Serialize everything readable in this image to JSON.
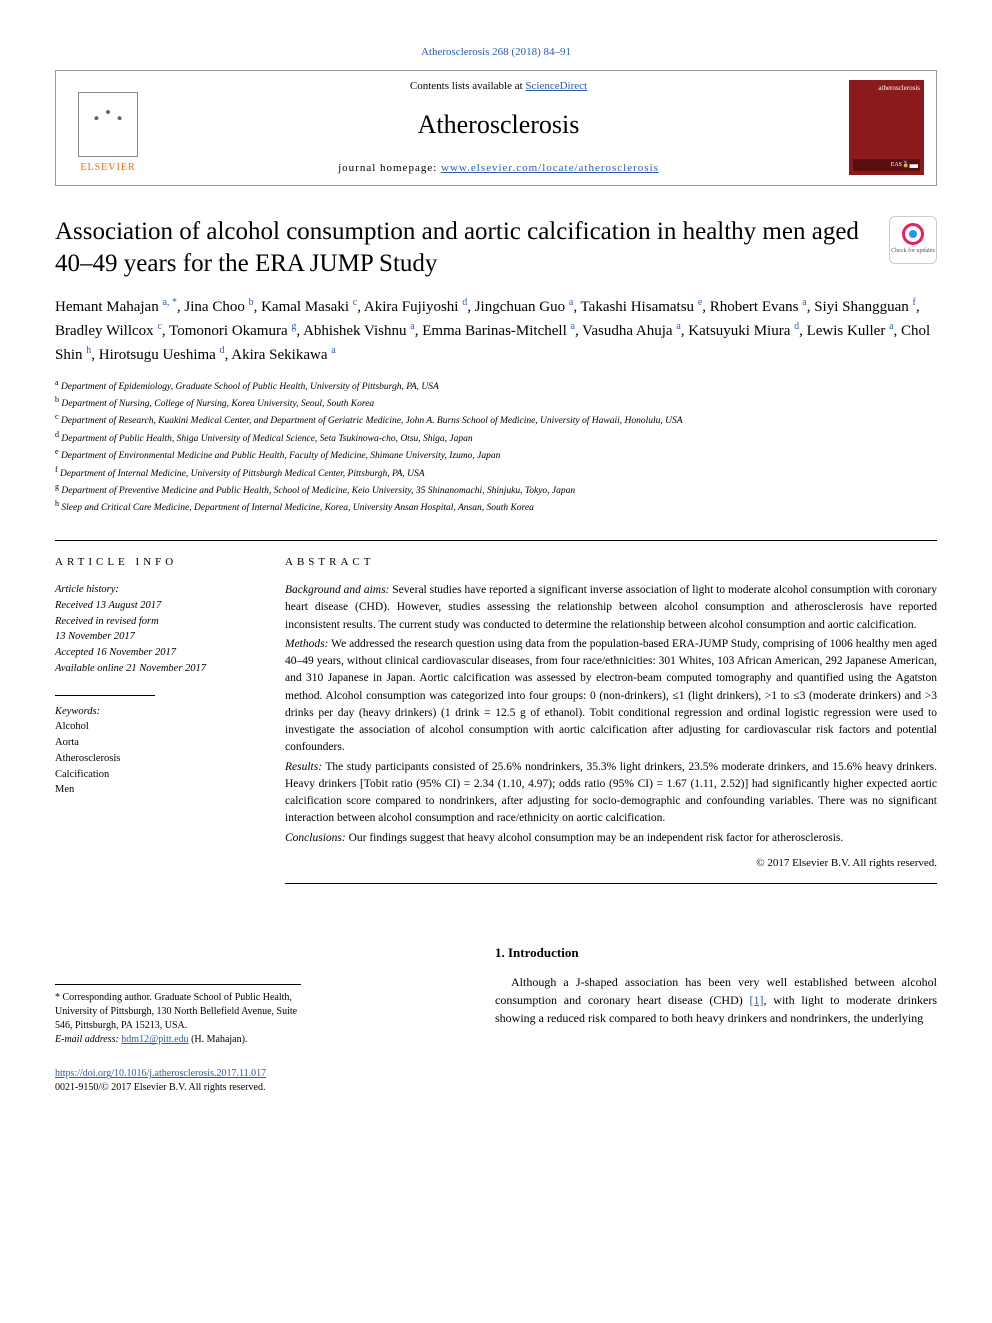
{
  "journal_ref": "Atherosclerosis 268 (2018) 84–91",
  "header": {
    "contents_prefix": "Contents lists available at ",
    "contents_link": "ScienceDirect",
    "journal_name": "Atherosclerosis",
    "homepage_prefix": "journal homepage: ",
    "homepage_link": "www.elsevier.com/locate/atherosclerosis",
    "elsevier": "ELSEVIER",
    "cover_label": "atherosclerosis",
    "cover_badge": "EAS🏅▄▄"
  },
  "check_updates": "Check for updates",
  "title": "Association of alcohol consumption and aortic calcification in healthy men aged 40–49 years for the ERA JUMP Study",
  "authors_html": "Hemant Mahajan <sup>a, *</sup>, Jina Choo <sup>b</sup>, Kamal Masaki <sup>c</sup>, Akira Fujiyoshi <sup>d</sup>, Jingchuan Guo <sup>a</sup>, Takashi Hisamatsu <sup>e</sup>, Rhobert Evans <sup>a</sup>, Siyi Shangguan <sup>f</sup>, Bradley Willcox <sup>c</sup>, Tomonori Okamura <sup>g</sup>, Abhishek Vishnu <sup>a</sup>, Emma Barinas-Mitchell <sup>a</sup>, Vasudha Ahuja <sup>a</sup>, Katsuyuki Miura <sup>d</sup>, Lewis Kuller <sup>a</sup>, Chol Shin <sup>h</sup>, Hirotsugu Ueshima <sup>d</sup>, Akira Sekikawa <sup>a</sup>",
  "affiliations": [
    {
      "k": "a",
      "t": "Department of Epidemiology, Graduate School of Public Health, University of Pittsburgh, PA, USA"
    },
    {
      "k": "b",
      "t": "Department of Nursing, College of Nursing, Korea University, Seoul, South Korea"
    },
    {
      "k": "c",
      "t": "Department of Research, Kuakini Medical Center, and Department of Geriatric Medicine, John A. Burns School of Medicine, University of Hawaii, Honolulu, USA"
    },
    {
      "k": "d",
      "t": "Department of Public Health, Shiga University of Medical Science, Seta Tsukinowa-cho, Otsu, Shiga, Japan"
    },
    {
      "k": "e",
      "t": "Department of Environmental Medicine and Public Health, Faculty of Medicine, Shimane University, Izumo, Japan"
    },
    {
      "k": "f",
      "t": "Department of Internal Medicine, University of Pittsburgh Medical Center, Pittsburgh, PA, USA"
    },
    {
      "k": "g",
      "t": "Department of Preventive Medicine and Public Health, School of Medicine, Keio University, 35 Shinanomachi, Shinjuku, Tokyo, Japan"
    },
    {
      "k": "h",
      "t": "Sleep and Critical Care Medicine, Department of Internal Medicine, Korea, University Ansan Hospital, Ansan, South Korea"
    }
  ],
  "article_info_head": "ARTICLE INFO",
  "abstract_head": "ABSTRACT",
  "history": {
    "label": "Article history:",
    "received": "Received 13 August 2017",
    "revised1": "Received in revised form",
    "revised2": "13 November 2017",
    "accepted": "Accepted 16 November 2017",
    "online": "Available online 21 November 2017"
  },
  "keywords": {
    "label": "Keywords:",
    "items": [
      "Alcohol",
      "Aorta",
      "Atherosclerosis",
      "Calcification",
      "Men"
    ]
  },
  "abstract": {
    "background_lbl": "Background and aims:",
    "background": " Several studies have reported a significant inverse association of light to moderate alcohol consumption with coronary heart disease (CHD). However, studies assessing the relationship between alcohol consumption and atherosclerosis have reported inconsistent results. The current study was conducted to determine the relationship between alcohol consumption and aortic calcification.",
    "methods_lbl": "Methods:",
    "methods": " We addressed the research question using data from the population-based ERA-JUMP Study, comprising of 1006 healthy men aged 40–49 years, without clinical cardiovascular diseases, from four race/ethnicities: 301 Whites, 103 African American, 292 Japanese American, and 310 Japanese in Japan. Aortic calcification was assessed by electron-beam computed tomography and quantified using the Agatston method. Alcohol consumption was categorized into four groups: 0 (non-drinkers), ≤1 (light drinkers), >1 to ≤3 (moderate drinkers) and >3 drinks per day (heavy drinkers) (1 drink = 12.5 g of ethanol). Tobit conditional regression and ordinal logistic regression were used to investigate the association of alcohol consumption with aortic calcification after adjusting for cardiovascular risk factors and potential confounders.",
    "results_lbl": "Results:",
    "results": " The study participants consisted of 25.6% nondrinkers, 35.3% light drinkers, 23.5% moderate drinkers, and 15.6% heavy drinkers. Heavy drinkers [Tobit ratio (95% CI) = 2.34 (1.10, 4.97); odds ratio (95% CI) = 1.67 (1.11, 2.52)] had significantly higher expected aortic calcification score compared to nondrinkers, after adjusting for socio-demographic and confounding variables. There was no significant interaction between alcohol consumption and race/ethnicity on aortic calcification.",
    "conclusions_lbl": "Conclusions:",
    "conclusions": " Our findings suggest that heavy alcohol consumption may be an independent risk factor for atherosclerosis.",
    "copyright": "© 2017 Elsevier B.V. All rights reserved."
  },
  "intro": {
    "heading": "1. Introduction",
    "text_before_ref": "Although a J-shaped association has been very well established between alcohol consumption and coronary heart disease (CHD) ",
    "ref": "[1]",
    "text_after_ref": ", with light to moderate drinkers showing a reduced risk compared to both heavy drinkers and nondrinkers, the underlying"
  },
  "corresponding": {
    "star": "* ",
    "text": "Corresponding author. Graduate School of Public Health, University of Pittsburgh, 130 North Bellefield Avenue, Suite 546, Pittsburgh, PA 15213, USA.",
    "email_lbl": "E-mail address: ",
    "email": "hdm12@pitt.edu",
    "email_suffix": " (H. Mahajan)."
  },
  "footer": {
    "doi": "https://doi.org/10.1016/j.atherosclerosis.2017.11.017",
    "issn_line": "0021-9150/© 2017 Elsevier B.V. All rights reserved."
  },
  "colors": {
    "link": "#2a5db0",
    "cover_bg": "#8b1a1a",
    "elsevier_orange": "#ff6600"
  }
}
